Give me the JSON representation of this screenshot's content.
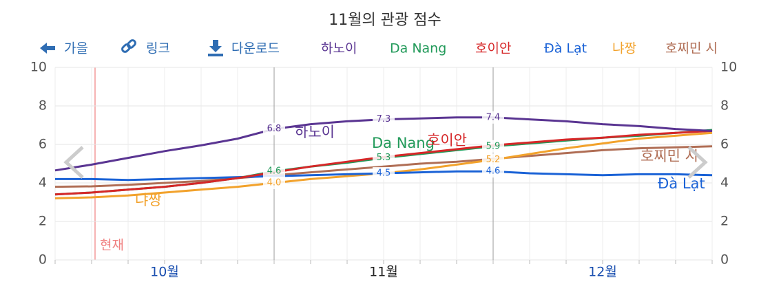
{
  "toolbar": {
    "back": "가을",
    "link": "링크",
    "download": "다운로드"
  },
  "chart_data": {
    "type": "line",
    "title": "11월의 관광 점수",
    "categories": [
      null,
      null,
      null,
      "10월",
      null,
      null,
      null,
      null,
      null,
      "11월",
      null,
      null,
      null,
      null,
      null,
      "12월",
      null,
      null,
      null
    ],
    "ylim": [
      0,
      10
    ],
    "yticks": [
      0,
      2,
      4,
      6,
      8,
      10
    ],
    "grid": true,
    "now_label": "현재",
    "series": [
      {
        "name": "하노이",
        "color": "#5a3592",
        "values": [
          4.65,
          4.95,
          5.3,
          5.65,
          5.95,
          6.3,
          6.8,
          7.05,
          7.2,
          7.3,
          7.35,
          7.4,
          7.4,
          7.3,
          7.2,
          7.05,
          6.95,
          6.8,
          6.7
        ],
        "value_labels": [
          null,
          null,
          null,
          null,
          null,
          null,
          "6.8",
          null,
          null,
          "7.3",
          null,
          null,
          "7.4",
          null,
          null,
          null,
          null,
          null,
          null
        ]
      },
      {
        "name": "Da Nang",
        "color": "#229a5a",
        "values": [
          3.4,
          3.5,
          3.65,
          3.8,
          4.0,
          4.25,
          4.6,
          4.85,
          5.05,
          5.3,
          5.5,
          5.7,
          5.9,
          6.05,
          6.2,
          6.35,
          6.45,
          6.6,
          6.75
        ],
        "value_labels": [
          null,
          null,
          null,
          null,
          null,
          null,
          "4.6",
          null,
          null,
          "5.3",
          null,
          null,
          "5.9",
          null,
          null,
          null,
          null,
          null,
          null
        ]
      },
      {
        "name": "호이안",
        "color": "#d62728",
        "values": [
          3.4,
          3.5,
          3.65,
          3.8,
          4.0,
          4.25,
          4.55,
          4.85,
          5.1,
          5.35,
          5.55,
          5.75,
          5.95,
          6.1,
          6.25,
          6.35,
          6.5,
          6.6,
          6.7
        ]
      },
      {
        "name": "Đà Lạt",
        "color": "#1a62d6",
        "values": [
          4.2,
          4.2,
          4.15,
          4.2,
          4.25,
          4.3,
          4.35,
          4.4,
          4.45,
          4.5,
          4.55,
          4.6,
          4.6,
          4.5,
          4.45,
          4.4,
          4.45,
          4.45,
          4.4
        ],
        "value_labels": [
          null,
          null,
          null,
          null,
          null,
          null,
          null,
          null,
          null,
          "4.5",
          null,
          null,
          "4.6",
          null,
          null,
          null,
          null,
          null,
          null
        ]
      },
      {
        "name": "냐짱",
        "color": "#f2a22c",
        "values": [
          3.2,
          3.25,
          3.35,
          3.5,
          3.65,
          3.8,
          4.0,
          4.2,
          4.35,
          4.5,
          4.7,
          4.95,
          5.2,
          5.5,
          5.8,
          6.05,
          6.3,
          6.45,
          6.6
        ],
        "value_labels": [
          null,
          null,
          null,
          null,
          null,
          null,
          "4.0",
          null,
          null,
          null,
          null,
          null,
          "5.2",
          null,
          null,
          null,
          null,
          null,
          null
        ]
      },
      {
        "name": "호찌민 시",
        "color": "#b06e55",
        "values": [
          3.8,
          3.82,
          3.9,
          4.0,
          4.1,
          4.25,
          4.4,
          4.55,
          4.7,
          4.85,
          5.0,
          5.1,
          5.25,
          5.4,
          5.55,
          5.7,
          5.8,
          5.85,
          5.9
        ]
      }
    ]
  }
}
